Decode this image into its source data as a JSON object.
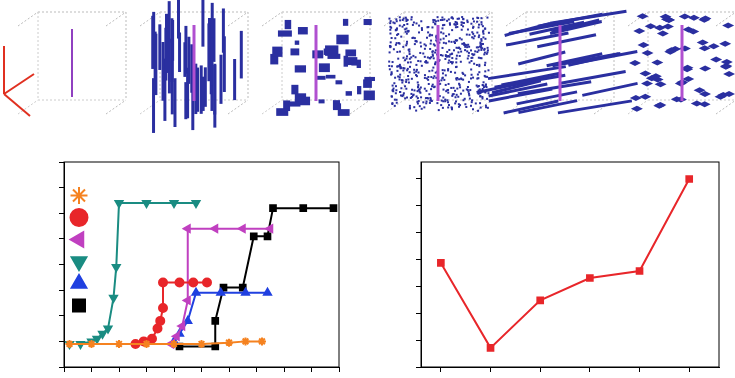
{
  "chart_data": [
    {
      "type": "line",
      "tick_labels": false,
      "grid": false,
      "legend": "upper center",
      "xlim": [
        0,
        10
      ],
      "xticks": [
        0,
        1,
        2,
        3,
        4,
        5,
        6,
        7,
        8,
        9,
        10
      ],
      "ylim": [
        0,
        8
      ],
      "yticks": [
        0,
        1,
        2,
        3,
        4,
        5,
        6,
        7,
        8
      ],
      "series": [
        {
          "color": "#f58220",
          "marker": "star",
          "x": [
            0.2,
            1.0,
            2.0,
            3.0,
            4.0,
            5.0,
            6.0,
            6.6,
            7.2
          ],
          "values": [
            0.9,
            0.9,
            0.9,
            0.9,
            0.9,
            0.9,
            0.95,
            1.0,
            1.0
          ]
        },
        {
          "color": "#e8262a",
          "marker": "circle",
          "x": [
            2.6,
            2.9,
            3.2,
            3.4,
            3.5,
            3.6,
            3.6,
            4.2,
            4.7,
            5.2
          ],
          "values": [
            0.9,
            1.0,
            1.1,
            1.5,
            1.8,
            2.3,
            3.3,
            3.3,
            3.3,
            3.3
          ]
        },
        {
          "color": "#c040c0",
          "marker": "triangle-left",
          "x": [
            3.9,
            4.1,
            4.3,
            4.5,
            4.5,
            5.5,
            6.5,
            7.5
          ],
          "values": [
            0.9,
            1.2,
            1.6,
            2.6,
            5.4,
            5.4,
            5.4,
            5.4
          ]
        },
        {
          "color": "#1a8c82",
          "marker": "triangle-down",
          "x": [
            0.2,
            0.6,
            1.0,
            1.2,
            1.4,
            1.6,
            1.8,
            1.9,
            2.0,
            3.0,
            4.0,
            4.8
          ],
          "values": [
            0.9,
            0.9,
            1.0,
            1.1,
            1.3,
            1.5,
            2.7,
            3.9,
            6.4,
            6.4,
            6.4,
            6.4
          ]
        },
        {
          "color": "#2040e0",
          "marker": "triangle-up",
          "x": [
            4.0,
            4.2,
            4.5,
            4.8,
            5.7,
            6.6,
            7.4
          ],
          "values": [
            1.0,
            1.3,
            1.8,
            2.9,
            2.9,
            2.9,
            2.9
          ]
        },
        {
          "color": "#000000",
          "marker": "square",
          "x": [
            4.2,
            5.5,
            5.5,
            5.8,
            6.5,
            6.9,
            7.4,
            7.6,
            8.7,
            9.8
          ],
          "values": [
            0.8,
            0.8,
            1.8,
            3.1,
            3.1,
            5.1,
            5.1,
            6.2,
            6.2,
            6.2
          ]
        }
      ]
    },
    {
      "type": "line",
      "tick_labels": false,
      "grid": false,
      "xlim": [
        0.6,
        6.6
      ],
      "xticks": [
        1,
        2,
        3,
        4,
        5,
        6
      ],
      "ylim": [
        0,
        7.6
      ],
      "yticks": [
        0,
        1,
        2,
        3,
        4,
        5,
        6,
        7
      ],
      "series": [
        {
          "color": "#e8262a",
          "marker": "square",
          "x": [
            1,
            2,
            3,
            4,
            5,
            6
          ],
          "values": [
            3.86,
            0.71,
            2.47,
            3.3,
            3.56,
            6.97
          ]
        }
      ]
    }
  ]
}
